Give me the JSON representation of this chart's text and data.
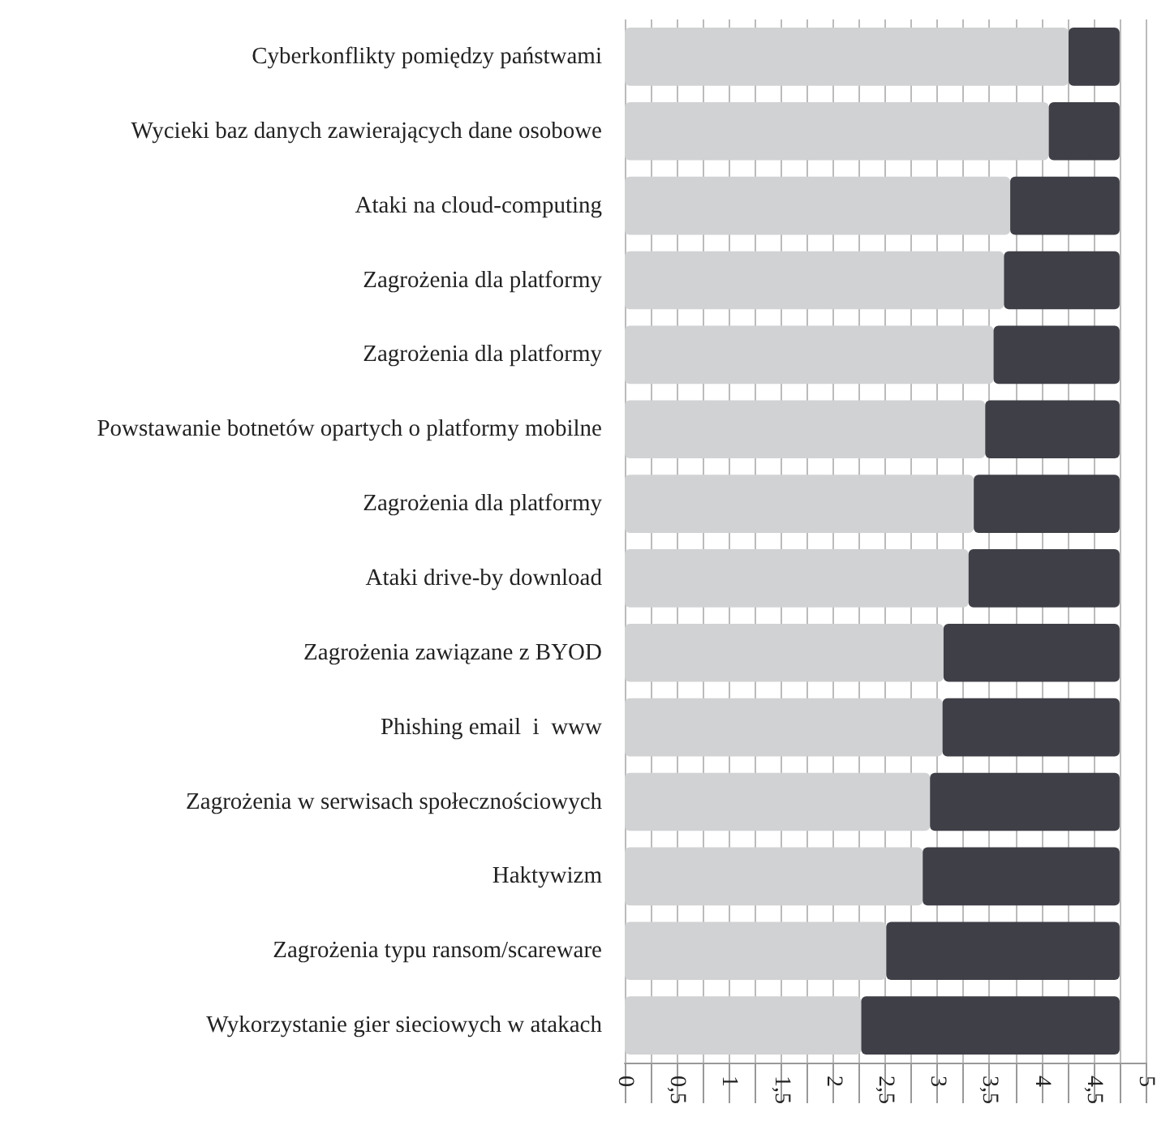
{
  "chart_data": {
    "type": "bar",
    "orientation": "horizontal",
    "stacked": true,
    "categories": [
      "Cyberkonflikty pomiędzy państwami",
      "Wycieki baz danych zawierających dane osobowe",
      "Ataki na cloud-computing",
      "Zagrożenia dla platformy",
      "Zagrożenia dla platformy",
      "Powstawanie botnetów opartych o platformy mobilne",
      "Zagrożenia dla platformy",
      "Ataki drive-by download",
      "Zagrożenia zawiązane z BYOD",
      "Phishing email  i  www",
      "Zagrożenia w serwisach społecznościowych",
      "Haktywizm",
      "Zagrożenia typu ransom/scareware",
      "Wykorzystanie gier sieciowych w atakach"
    ],
    "series": [
      {
        "color": "#d1d2d4",
        "values": [
          4.26,
          4.07,
          3.7,
          3.64,
          3.54,
          3.46,
          3.35,
          3.3,
          3.06,
          3.05,
          2.93,
          2.86,
          2.51,
          2.27
        ]
      },
      {
        "color": "#3f3f47",
        "values": [
          0.49,
          0.68,
          1.05,
          1.11,
          1.21,
          1.29,
          1.4,
          1.45,
          1.69,
          1.7,
          1.82,
          1.89,
          2.24,
          2.48
        ]
      }
    ],
    "xlim": [
      0,
      5
    ],
    "xticks": [
      0,
      {
        "value": 0.25,
        "label": null
      },
      {
        "value": 0.5,
        "label": "0,5"
      },
      {
        "value": 0.75,
        "label": null
      },
      1,
      {
        "value": 1.25,
        "label": null
      },
      {
        "value": 1.5,
        "label": "1,5"
      },
      {
        "value": 1.75,
        "label": null
      },
      2,
      {
        "value": 2.25,
        "label": null
      },
      {
        "value": 2.5,
        "label": "2,5"
      },
      {
        "value": 2.75,
        "label": null
      },
      3,
      {
        "value": 3.25,
        "label": null
      },
      {
        "value": 3.5,
        "label": "3,5"
      },
      {
        "value": 3.75,
        "label": null
      },
      4,
      {
        "value": 4.25,
        "label": null
      },
      {
        "value": 4.5,
        "label": "4,5"
      },
      {
        "value": 4.75,
        "label": null
      },
      5
    ],
    "grid": "x"
  }
}
